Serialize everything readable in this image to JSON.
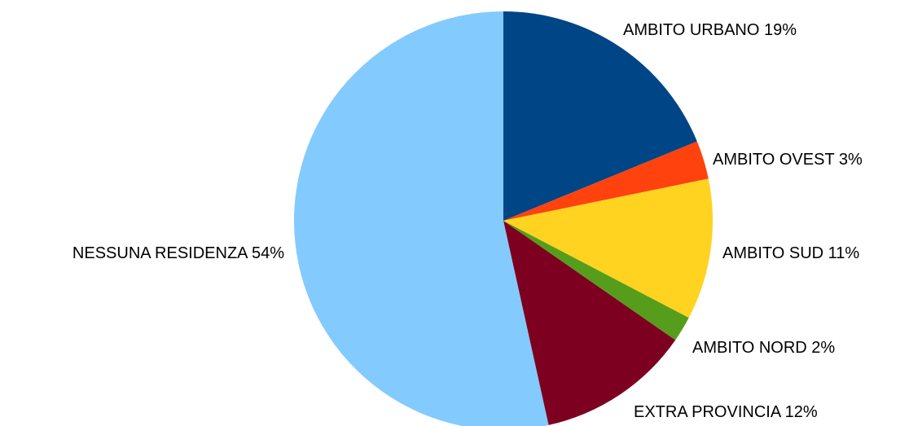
{
  "chart_data": {
    "type": "pie",
    "title": "",
    "slices": [
      {
        "label": "AMBITO URBANO 19%",
        "value": 19,
        "color": "#004586"
      },
      {
        "label": "AMBITO OVEST 3%",
        "value": 3,
        "color": "#FF420E"
      },
      {
        "label": "AMBITO SUD 11%",
        "value": 11,
        "color": "#FFD320"
      },
      {
        "label": "AMBITO NORD 2%",
        "value": 2,
        "color": "#579D1C"
      },
      {
        "label": "EXTRA PROVINCIA 12%",
        "value": 12,
        "color": "#7E0021"
      },
      {
        "label": "NESSUNA RESIDENZA 54%",
        "value": 54,
        "color": "#83CAFF"
      }
    ],
    "start_angle": "12 o'clock",
    "direction": "clockwise",
    "legend": "none"
  }
}
